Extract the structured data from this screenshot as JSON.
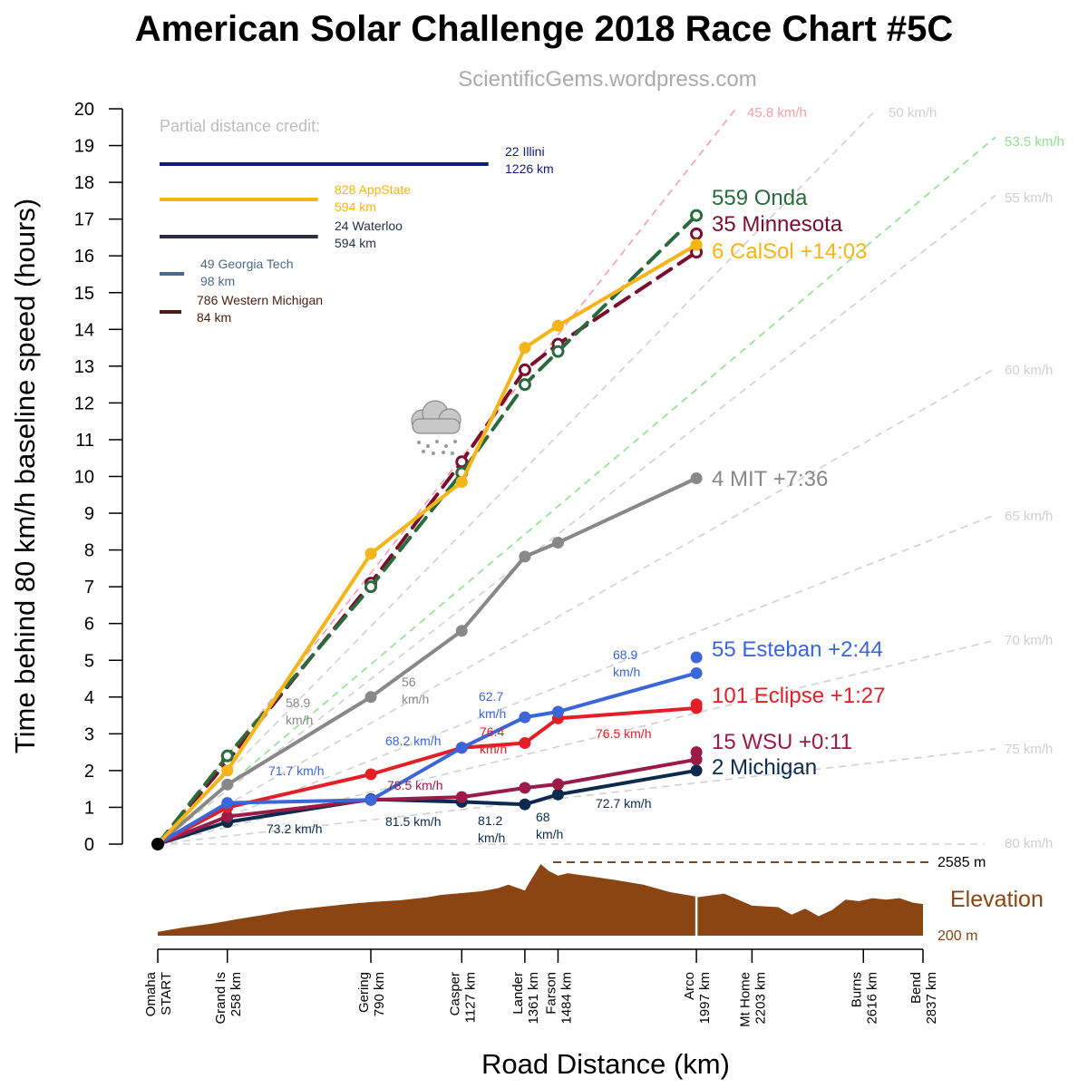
{
  "header": {
    "title": "American Solar Challenge 2018 Race Chart #5C",
    "subtitle": "ScientificGems.wordpress.com"
  },
  "chart_data": {
    "type": "line",
    "xlabel": "Road Distance (km)",
    "ylabel": "Time behind 80 km/h baseline speed (hours)",
    "xlim": [
      0,
      2837
    ],
    "ylim": [
      0,
      20
    ],
    "yticks": [
      0,
      1,
      2,
      3,
      4,
      5,
      6,
      7,
      8,
      9,
      10,
      11,
      12,
      13,
      14,
      15,
      16,
      17,
      18,
      19,
      20
    ],
    "stops": [
      {
        "name": "Omaha",
        "label2": "START",
        "km": 0
      },
      {
        "name": "Grand Is",
        "label2": "258 km",
        "km": 258
      },
      {
        "name": "Gering",
        "label2": "790 km",
        "km": 790
      },
      {
        "name": "Casper",
        "label2": "1127 km",
        "km": 1127
      },
      {
        "name": "Lander",
        "label2": "1361 km",
        "km": 1361
      },
      {
        "name": "Farson",
        "label2": "1484 km",
        "km": 1484
      },
      {
        "name": "Arco",
        "label2": "1997 km",
        "km": 1997
      },
      {
        "name": "Mt Home",
        "label2": "2203 km",
        "km": 2203
      },
      {
        "name": "Burns",
        "label2": "2616 km",
        "km": 2616
      },
      {
        "name": "Bend",
        "label2": "2837 km",
        "km": 2837
      }
    ],
    "speed_lines": [
      {
        "label": "45.8 km/h",
        "speed": 45.8,
        "color": "#f4a0a8"
      },
      {
        "label": "50 km/h",
        "speed": 50,
        "color": "#d0d0d0"
      },
      {
        "label": "53.5 km/h",
        "speed": 53.5,
        "color": "#8ee08e"
      },
      {
        "label": "55 km/h",
        "speed": 55,
        "color": "#d0d0d0"
      },
      {
        "label": "60 km/h",
        "speed": 60,
        "color": "#d0d0d0"
      },
      {
        "label": "65 km/h",
        "speed": 65,
        "color": "#d0d0d0"
      },
      {
        "label": "70 km/h",
        "speed": 70,
        "color": "#d0d0d0"
      },
      {
        "label": "75 km/h",
        "speed": 75,
        "color": "#d0d0d0"
      },
      {
        "label": "80 km/h",
        "speed": 80,
        "color": "#d0d0d0"
      }
    ],
    "series": [
      {
        "name": "CalSol",
        "label": "6 CalSol +14:03",
        "color": "#f5b417",
        "style": "solid",
        "points": [
          [
            0,
            0
          ],
          [
            258,
            2
          ],
          [
            790,
            7.9
          ],
          [
            1127,
            9.85
          ],
          [
            1361,
            13.5
          ],
          [
            1484,
            14.1
          ],
          [
            1997,
            16.3
          ]
        ],
        "end_markers": [
          16.3
        ]
      },
      {
        "name": "Onda",
        "label": "559 Onda",
        "color": "#2a6a3c",
        "style": "dashed",
        "hollow": true,
        "points": [
          [
            0,
            0
          ],
          [
            258,
            2.4
          ],
          [
            790,
            7
          ],
          [
            1127,
            10.1
          ],
          [
            1361,
            12.5
          ],
          [
            1484,
            13.4
          ],
          [
            1997,
            17.1
          ]
        ],
        "end_markers": []
      },
      {
        "name": "Minnesota",
        "label": "35 Minnesota",
        "color": "#7a0f2d",
        "style": "dashed",
        "hollow": true,
        "points": [
          [
            0,
            0
          ],
          [
            258,
            2.25
          ],
          [
            790,
            7.1
          ],
          [
            1127,
            10.4
          ],
          [
            1361,
            12.9
          ],
          [
            1484,
            13.6
          ],
          [
            1997,
            16.1
          ]
        ],
        "end_markers": [
          16.6
        ]
      },
      {
        "name": "MIT",
        "label": "4 MIT +7:36",
        "color": "#888888",
        "style": "solid",
        "points": [
          [
            0,
            0
          ],
          [
            258,
            1.62
          ],
          [
            790,
            4
          ],
          [
            1127,
            5.8
          ],
          [
            1361,
            7.82
          ],
          [
            1484,
            8.2
          ],
          [
            1997,
            9.95
          ]
        ],
        "end_markers": []
      },
      {
        "name": "Esteban",
        "label": "55 Esteban +2:44",
        "color": "#3a66d8",
        "style": "solid",
        "points": [
          [
            0,
            0
          ],
          [
            258,
            1.12
          ],
          [
            790,
            1.2
          ],
          [
            1127,
            2.62
          ],
          [
            1361,
            3.45
          ],
          [
            1484,
            3.6
          ],
          [
            1997,
            4.65
          ]
        ],
        "end_markers": [
          5.08
        ]
      },
      {
        "name": "Eclipse",
        "label": "101 Eclipse +1:27",
        "color": "#e41e26",
        "style": "solid",
        "points": [
          [
            0,
            0
          ],
          [
            258,
            1
          ],
          [
            790,
            1.9
          ],
          [
            1127,
            2.62
          ],
          [
            1361,
            2.75
          ],
          [
            1484,
            3.42
          ],
          [
            1997,
            3.7
          ]
        ],
        "end_markers": [
          3.8
        ]
      },
      {
        "name": "WSU",
        "label": "15 WSU +0:11",
        "color": "#9a1a48",
        "style": "solid",
        "points": [
          [
            0,
            0
          ],
          [
            258,
            0.75
          ],
          [
            790,
            1.2
          ],
          [
            1127,
            1.28
          ],
          [
            1361,
            1.53
          ],
          [
            1484,
            1.63
          ],
          [
            1997,
            2.3
          ]
        ],
        "end_markers": [
          2.5
        ]
      },
      {
        "name": "Michigan",
        "label": "2 Michigan",
        "color": "#0c2a4e",
        "style": "solid",
        "points": [
          [
            0,
            0
          ],
          [
            258,
            0.6
          ],
          [
            790,
            1.22
          ],
          [
            1127,
            1.15
          ],
          [
            1361,
            1.08
          ],
          [
            1484,
            1.35
          ],
          [
            1997,
            2
          ]
        ],
        "end_markers": []
      }
    ],
    "partial_credit": {
      "title": "Partial distance credit:",
      "entries": [
        {
          "name": "22 Illini",
          "km_label": "1226 km",
          "km": 1226,
          "color": "#0f1a7a"
        },
        {
          "name": "828 AppState",
          "km_label": "594 km",
          "km": 594,
          "color": "#f5b417"
        },
        {
          "name": "24 Waterloo",
          "km_label": "594 km",
          "km": 594,
          "color": "#2a3040"
        },
        {
          "name": "49 Georgia Tech",
          "km_label": "98 km",
          "km": 98,
          "color": "#4a6a8a"
        },
        {
          "name": "786 Western Michigan",
          "km_label": "84 km",
          "km": 84,
          "color": "#4a1e10"
        }
      ]
    },
    "annotations": [
      {
        "line1": "58.9",
        "line2": "km/h",
        "color": "#888888"
      },
      {
        "line1": "56",
        "line2": "km/h",
        "color": "#888888"
      },
      {
        "line1": "71.7 km/h",
        "line2": "",
        "color": "#3a66d8"
      },
      {
        "line1": "68.2 km/h",
        "line2": "",
        "color": "#3a66d8"
      },
      {
        "line1": "62.7",
        "line2": "km/h",
        "color": "#3a66d8"
      },
      {
        "line1": "68.9",
        "line2": "km/h",
        "color": "#3a66d8"
      },
      {
        "line1": "76.4",
        "line2": "km/h",
        "color": "#e41e26"
      },
      {
        "line1": "76.5 km/h",
        "line2": "",
        "color": "#e41e26"
      },
      {
        "line1": "78.5 km/h",
        "line2": "",
        "color": "#9a1a48"
      },
      {
        "line1": "73.2 km/h",
        "line2": "",
        "color": "#0c2a4e"
      },
      {
        "line1": "81.5 km/h",
        "line2": "",
        "color": "#0c2a4e"
      },
      {
        "line1": "81.2",
        "line2": "km/h",
        "color": "#0c2a4e"
      },
      {
        "line1": "68",
        "line2": "km/h",
        "color": "#0c2a4e"
      },
      {
        "line1": "72.7 km/h",
        "line2": "",
        "color": "#0c2a4e"
      }
    ],
    "elevation": {
      "label": "Elevation",
      "max_label": "2585 m",
      "min_label": "200 m",
      "color": "#8b4513",
      "min_m": 200,
      "max_m": 2585,
      "profile_km": [
        0,
        100,
        200,
        300,
        400,
        500,
        600,
        700,
        790,
        900,
        1000,
        1050,
        1127,
        1200,
        1260,
        1300,
        1361,
        1380,
        1420,
        1450,
        1484,
        1520,
        1600,
        1700,
        1800,
        1900,
        1997,
        2000,
        2100,
        2203,
        2300,
        2350,
        2400,
        2450,
        2500,
        2550,
        2600,
        2650,
        2700,
        2750,
        2800,
        2837
      ],
      "profile_m": [
        330,
        480,
        600,
        760,
        900,
        1050,
        1150,
        1250,
        1320,
        1380,
        1480,
        1560,
        1620,
        1680,
        1780,
        1900,
        1700,
        2000,
        2585,
        2350,
        2200,
        2280,
        2180,
        2050,
        1900,
        1650,
        1500,
        1480,
        1600,
        1200,
        1150,
        900,
        1100,
        850,
        1050,
        1400,
        1350,
        1450,
        1400,
        1450,
        1300,
        1250
      ]
    },
    "weather_icon": "cloud-snow-icon"
  }
}
